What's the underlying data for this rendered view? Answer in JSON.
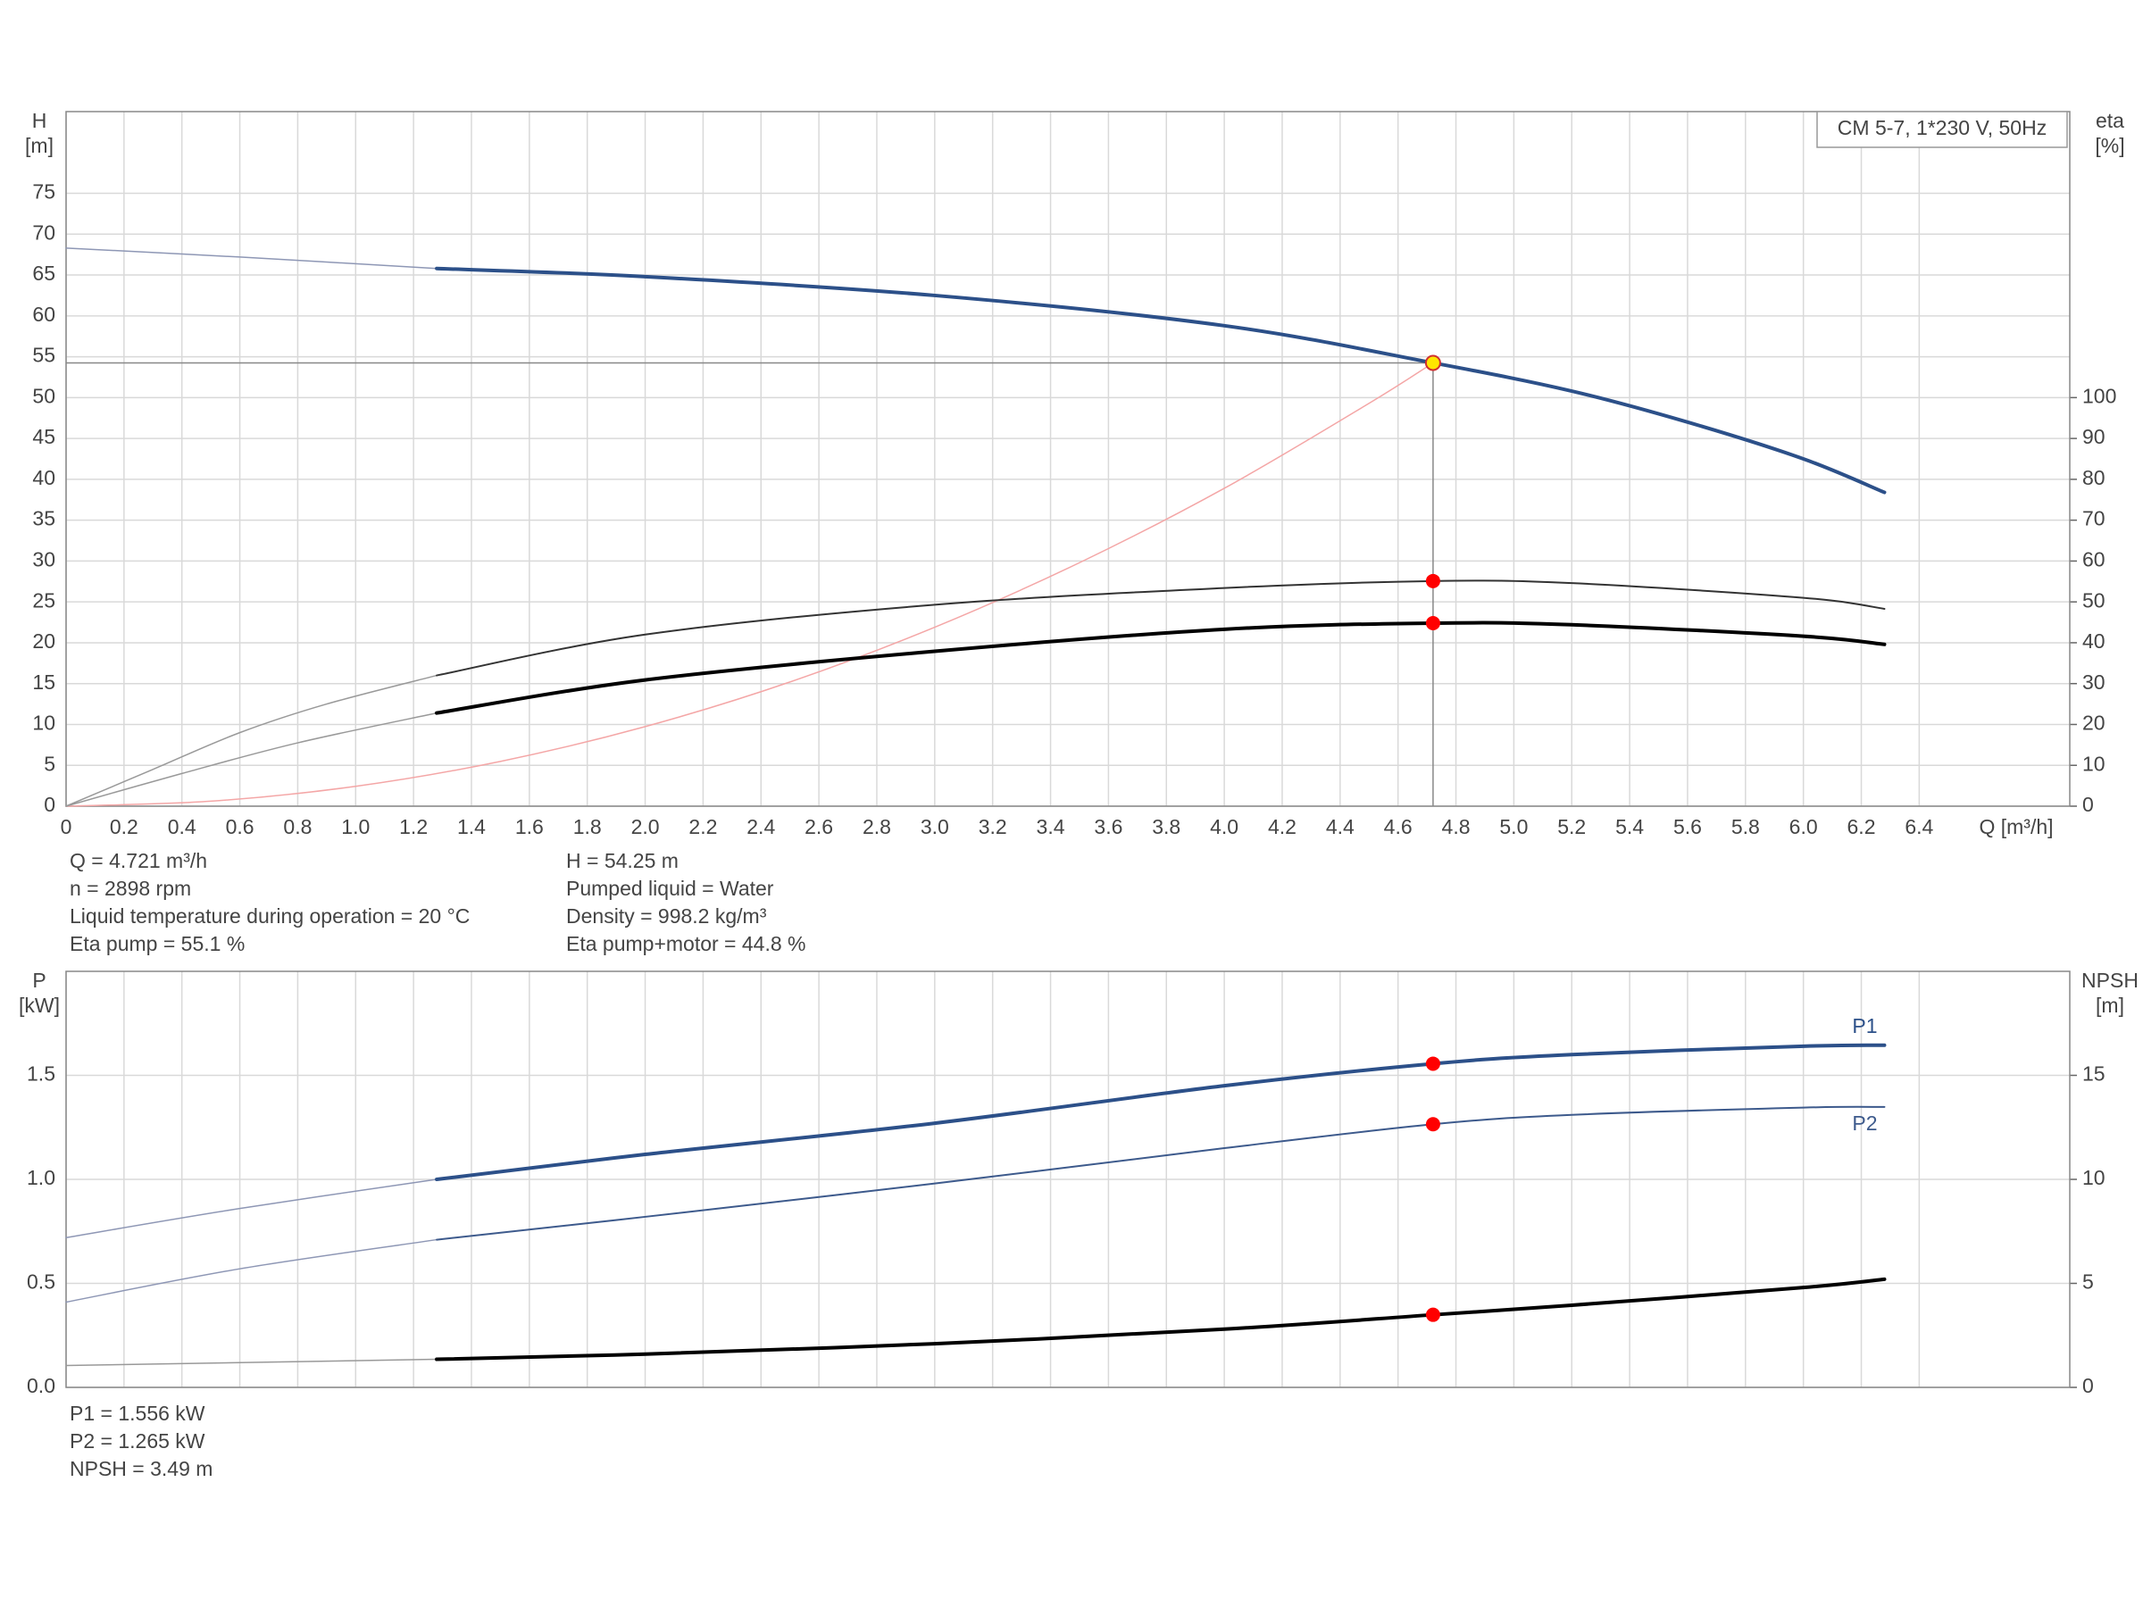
{
  "chart_data": [
    {
      "type": "line",
      "title": "CM 5-7, 1*230 V, 50Hz",
      "xlabel": "Q [m³/h]",
      "ylabel": [
        "H",
        "[m]"
      ],
      "y2label": [
        "eta",
        "[%]"
      ],
      "xlim": [
        0,
        6.92
      ],
      "xticks": [
        0,
        0.2,
        0.4,
        0.6,
        0.8,
        {
          "value": 1,
          "label": "1.0"
        },
        1.2,
        1.4,
        1.6,
        1.8,
        {
          "value": 2,
          "label": "2.0"
        },
        2.2,
        2.4,
        2.6,
        2.8,
        {
          "value": 3,
          "label": "3.0"
        },
        3.2,
        3.4,
        3.6,
        3.8,
        {
          "value": 4,
          "label": "4.0"
        },
        4.2,
        4.4,
        4.6,
        4.8,
        {
          "value": 5,
          "label": "5.0"
        },
        5.2,
        5.4,
        5.6,
        5.8,
        {
          "value": 6,
          "label": "6.0"
        },
        6.2,
        6.4
      ],
      "ylim": [
        0,
        85
      ],
      "yticks": [
        0,
        5,
        10,
        15,
        20,
        25,
        30,
        35,
        40,
        45,
        50,
        55,
        60,
        65,
        70,
        75
      ],
      "y2lim": [
        0,
        170
      ],
      "y2ticks": [
        0,
        10,
        20,
        30,
        40,
        50,
        60,
        70,
        80,
        90,
        100
      ],
      "grid": true,
      "crosshair": true,
      "series": [
        {
          "color": "#8e97b5",
          "width": 1.5,
          "x": [
            0,
            0.6,
            1.28
          ],
          "values": [
            68.3,
            67.2,
            65.8
          ]
        },
        {
          "color": "#2c5089",
          "width": 4,
          "x": [
            1.28,
            2,
            3,
            4,
            4.721,
            5.2,
            5.6,
            6,
            6.28
          ],
          "values": [
            65.8,
            64.8,
            62.5,
            58.8,
            54.25,
            50.8,
            47.0,
            42.5,
            38.4
          ]
        },
        {
          "color": "#f4a6a6",
          "width": 1.5,
          "x": [
            0,
            0.5,
            1,
            1.5,
            2,
            2.5,
            3,
            3.5,
            4,
            4.5,
            4.721
          ],
          "values": [
            0,
            0.61,
            2.43,
            5.48,
            9.74,
            15.2,
            21.9,
            29.8,
            38.9,
            49.3,
            54.25
          ]
        },
        {
          "color": "#999999",
          "width": 1.5,
          "axis": "y2",
          "x": [
            0,
            0.3,
            0.6,
            0.9,
            1.28
          ],
          "values": [
            0,
            9,
            18,
            25,
            32
          ]
        },
        {
          "color": "#333333",
          "width": 2,
          "axis": "y2",
          "x": [
            1.28,
            2,
            3,
            4,
            4.721,
            5.2,
            6,
            6.28
          ],
          "values": [
            32,
            42,
            49.3,
            53.4,
            55.1,
            54.6,
            51,
            48.3
          ]
        },
        {
          "color": "#999999",
          "width": 1.5,
          "axis": "y2",
          "x": [
            0,
            0.4,
            0.8,
            1.28
          ],
          "values": [
            0,
            8,
            15.5,
            22.8
          ]
        },
        {
          "color": "#000000",
          "width": 4,
          "axis": "y2",
          "x": [
            1.28,
            2,
            3,
            4,
            4.721,
            5.2,
            6,
            6.28
          ],
          "values": [
            22.8,
            30.9,
            37.9,
            43.3,
            44.8,
            44.4,
            41.6,
            39.6
          ]
        }
      ],
      "points": [
        {
          "x": 4.721,
          "y": 54.25,
          "color": "#ffe600"
        },
        {
          "x": 4.721,
          "y": 55.1,
          "axis": "y2",
          "color": "#ff0000"
        },
        {
          "x": 4.721,
          "y": 44.8,
          "axis": "y2",
          "color": "#ff0000"
        }
      ],
      "info": [
        [
          "Q = 4.721 m³/h",
          "n = 2898 rpm",
          "Liquid temperature during operation = 20 °C",
          "Eta pump = 55.1 %"
        ],
        [
          "H = 54.25 m",
          "Pumped liquid = Water",
          "Density = 998.2 kg/m³",
          "Eta pump+motor = 44.8 %"
        ]
      ]
    },
    {
      "type": "line",
      "ylabel": [
        "P",
        "[kW]"
      ],
      "y2label": [
        "NPSH",
        "[m]"
      ],
      "xlim": [
        0,
        6.92
      ],
      "xticks": [
        0,
        0.2,
        0.4,
        0.6,
        0.8,
        1,
        1.2,
        1.4,
        1.6,
        1.8,
        2,
        2.2,
        2.4,
        2.6,
        2.8,
        3,
        3.2,
        3.4,
        3.6,
        3.8,
        4,
        4.2,
        4.4,
        4.6,
        4.8,
        5,
        5.2,
        5.4,
        5.6,
        5.8,
        6,
        6.2,
        6.4
      ],
      "ylim": [
        0,
        2
      ],
      "yticks": [
        {
          "value": 0,
          "label": "0.0"
        },
        0.5,
        {
          "value": 1,
          "label": "1.0"
        },
        1.5
      ],
      "y2lim": [
        0,
        20
      ],
      "y2ticks": [
        0,
        5,
        10,
        15
      ],
      "grid": true,
      "series": [
        {
          "color": "#8e97b5",
          "width": 1.5,
          "x": [
            0,
            0.6,
            1.28
          ],
          "values": [
            0.72,
            0.86,
            1.0
          ]
        },
        {
          "name": "P1",
          "label_position": "above",
          "color": "#2c5089",
          "width": 4,
          "x": [
            1.28,
            2,
            3,
            4,
            4.721,
            5.2,
            6,
            6.28
          ],
          "values": [
            1.0,
            1.12,
            1.27,
            1.45,
            1.556,
            1.6,
            1.64,
            1.645
          ]
        },
        {
          "color": "#8e97b5",
          "width": 1.5,
          "x": [
            0,
            0.6,
            1.28
          ],
          "values": [
            0.41,
            0.57,
            0.71
          ]
        },
        {
          "name": "P2",
          "label_position": "below",
          "color": "#3d5a8c",
          "width": 2,
          "x": [
            1.28,
            2,
            3,
            4,
            4.721,
            5.2,
            6,
            6.28
          ],
          "values": [
            0.71,
            0.82,
            0.98,
            1.15,
            1.265,
            1.31,
            1.345,
            1.348
          ]
        },
        {
          "color": "#999999",
          "width": 1.5,
          "axis": "y2",
          "x": [
            0,
            1.28
          ],
          "values": [
            1.05,
            1.35
          ]
        },
        {
          "color": "#000000",
          "width": 4,
          "axis": "y2",
          "x": [
            1.28,
            2,
            3,
            4,
            4.721,
            5.2,
            6,
            6.28
          ],
          "values": [
            1.35,
            1.6,
            2.1,
            2.8,
            3.49,
            3.95,
            4.8,
            5.2
          ]
        }
      ],
      "points": [
        {
          "x": 4.721,
          "y": 1.556,
          "color": "#ff0000"
        },
        {
          "x": 4.721,
          "y": 1.265,
          "color": "#ff0000"
        },
        {
          "x": 4.721,
          "y": 3.49,
          "axis": "y2",
          "color": "#ff0000"
        }
      ],
      "info": [
        [
          "P1 = 1.556 kW",
          "P2 = 1.265 kW",
          "NPSH = 3.49 m"
        ]
      ]
    }
  ]
}
